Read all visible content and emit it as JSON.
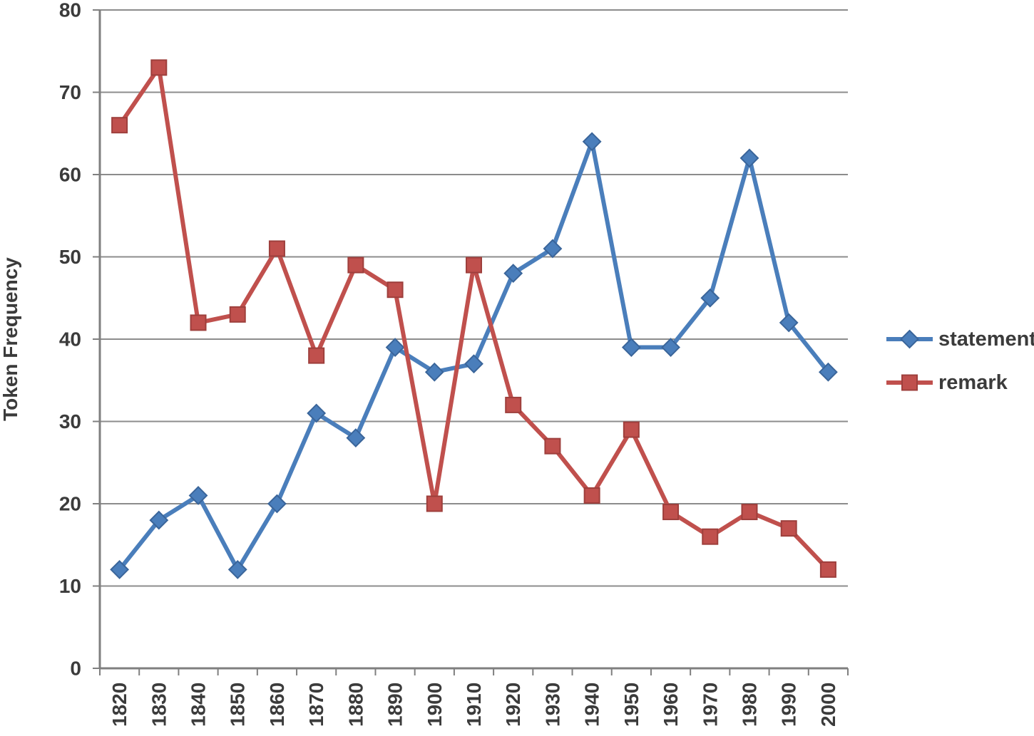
{
  "figure": {
    "background_color": "#ffffff"
  },
  "chart_data": {
    "type": "line",
    "title": "",
    "xlabel": "",
    "ylabel": "Token Frequency",
    "categories": [
      "1820",
      "1830",
      "1840",
      "1850",
      "1860",
      "1870",
      "1880",
      "1890",
      "1900",
      "1910",
      "1920",
      "1930",
      "1940",
      "1950",
      "1960",
      "1970",
      "1980",
      "1990",
      "2000"
    ],
    "series": [
      {
        "name": "statement",
        "marker": "diamond",
        "color": "#4A7EBB",
        "marker_edge_color": "#3A659A",
        "values": [
          12,
          18,
          21,
          12,
          20,
          31,
          28,
          39,
          36,
          37,
          48,
          51,
          64,
          39,
          39,
          45,
          62,
          42,
          36
        ]
      },
      {
        "name": "remark",
        "marker": "square",
        "color": "#C0504D",
        "marker_edge_color": "#9E3F3C",
        "values": [
          66,
          73,
          42,
          43,
          51,
          38,
          49,
          46,
          20,
          49,
          32,
          27,
          21,
          29,
          19,
          16,
          19,
          17,
          12
        ]
      }
    ],
    "ylim": [
      0,
      80
    ],
    "ytick_step": 10,
    "ytick_labels": [
      "0",
      "10",
      "20",
      "30",
      "40",
      "50",
      "60",
      "70",
      "80"
    ],
    "grid": "horizontal",
    "grid_color": "#8c8c8c",
    "axis_color": "#7f7f7f",
    "tick_label_color": "#3b3b3b",
    "legend_position": "right"
  }
}
